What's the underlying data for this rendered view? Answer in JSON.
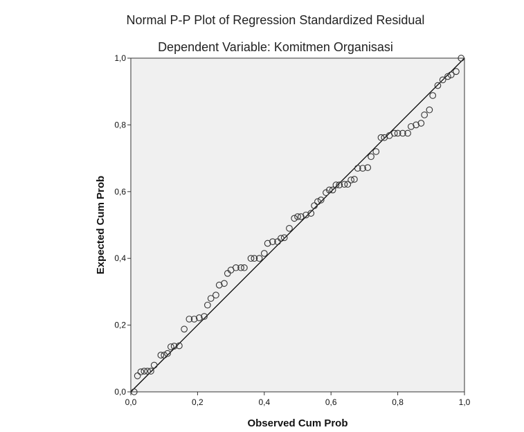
{
  "chart_data": {
    "type": "scatter",
    "title": "Normal P-P Plot of Regression Standardized Residual",
    "subtitle": "Dependent Variable: Komitmen Organisasi",
    "xlabel": "Observed Cum Prob",
    "ylabel": "Expected Cum Prob",
    "xlim": [
      0,
      1
    ],
    "ylim": [
      0,
      1
    ],
    "x_ticks": [
      "0,0",
      "0,2",
      "0,4",
      "0,6",
      "0,8",
      "1,0"
    ],
    "y_ticks": [
      "0,0",
      "0,2",
      "0,4",
      "0,6",
      "0,8",
      "1,0"
    ],
    "grid": false,
    "reference_line": {
      "x": [
        0,
        1
      ],
      "y": [
        0,
        1
      ]
    },
    "colors": {
      "plot_background": "#f0f0f0",
      "marker_stroke": "#333333",
      "line": "#000000"
    },
    "points": [
      [
        0.01,
        0.0
      ],
      [
        0.02,
        0.048
      ],
      [
        0.03,
        0.06
      ],
      [
        0.04,
        0.062
      ],
      [
        0.05,
        0.062
      ],
      [
        0.06,
        0.062
      ],
      [
        0.07,
        0.08
      ],
      [
        0.09,
        0.11
      ],
      [
        0.1,
        0.11
      ],
      [
        0.11,
        0.115
      ],
      [
        0.12,
        0.135
      ],
      [
        0.13,
        0.137
      ],
      [
        0.145,
        0.138
      ],
      [
        0.16,
        0.188
      ],
      [
        0.175,
        0.218
      ],
      [
        0.19,
        0.218
      ],
      [
        0.205,
        0.222
      ],
      [
        0.22,
        0.226
      ],
      [
        0.23,
        0.26
      ],
      [
        0.24,
        0.28
      ],
      [
        0.255,
        0.29
      ],
      [
        0.265,
        0.32
      ],
      [
        0.28,
        0.325
      ],
      [
        0.29,
        0.355
      ],
      [
        0.3,
        0.365
      ],
      [
        0.315,
        0.372
      ],
      [
        0.33,
        0.372
      ],
      [
        0.34,
        0.372
      ],
      [
        0.36,
        0.4
      ],
      [
        0.37,
        0.4
      ],
      [
        0.385,
        0.4
      ],
      [
        0.4,
        0.415
      ],
      [
        0.41,
        0.445
      ],
      [
        0.425,
        0.45
      ],
      [
        0.44,
        0.45
      ],
      [
        0.45,
        0.46
      ],
      [
        0.46,
        0.462
      ],
      [
        0.475,
        0.49
      ],
      [
        0.49,
        0.52
      ],
      [
        0.5,
        0.525
      ],
      [
        0.51,
        0.525
      ],
      [
        0.525,
        0.53
      ],
      [
        0.54,
        0.535
      ],
      [
        0.55,
        0.558
      ],
      [
        0.56,
        0.57
      ],
      [
        0.57,
        0.575
      ],
      [
        0.585,
        0.597
      ],
      [
        0.595,
        0.605
      ],
      [
        0.605,
        0.605
      ],
      [
        0.615,
        0.62
      ],
      [
        0.625,
        0.62
      ],
      [
        0.64,
        0.622
      ],
      [
        0.65,
        0.622
      ],
      [
        0.66,
        0.635
      ],
      [
        0.67,
        0.637
      ],
      [
        0.68,
        0.67
      ],
      [
        0.695,
        0.67
      ],
      [
        0.71,
        0.672
      ],
      [
        0.72,
        0.705
      ],
      [
        0.735,
        0.72
      ],
      [
        0.75,
        0.762
      ],
      [
        0.76,
        0.762
      ],
      [
        0.775,
        0.768
      ],
      [
        0.79,
        0.775
      ],
      [
        0.8,
        0.775
      ],
      [
        0.815,
        0.775
      ],
      [
        0.83,
        0.775
      ],
      [
        0.84,
        0.795
      ],
      [
        0.855,
        0.8
      ],
      [
        0.87,
        0.805
      ],
      [
        0.88,
        0.83
      ],
      [
        0.895,
        0.845
      ],
      [
        0.905,
        0.888
      ],
      [
        0.92,
        0.918
      ],
      [
        0.935,
        0.935
      ],
      [
        0.95,
        0.945
      ],
      [
        0.96,
        0.95
      ],
      [
        0.975,
        0.96
      ],
      [
        0.99,
        1.0
      ]
    ]
  }
}
